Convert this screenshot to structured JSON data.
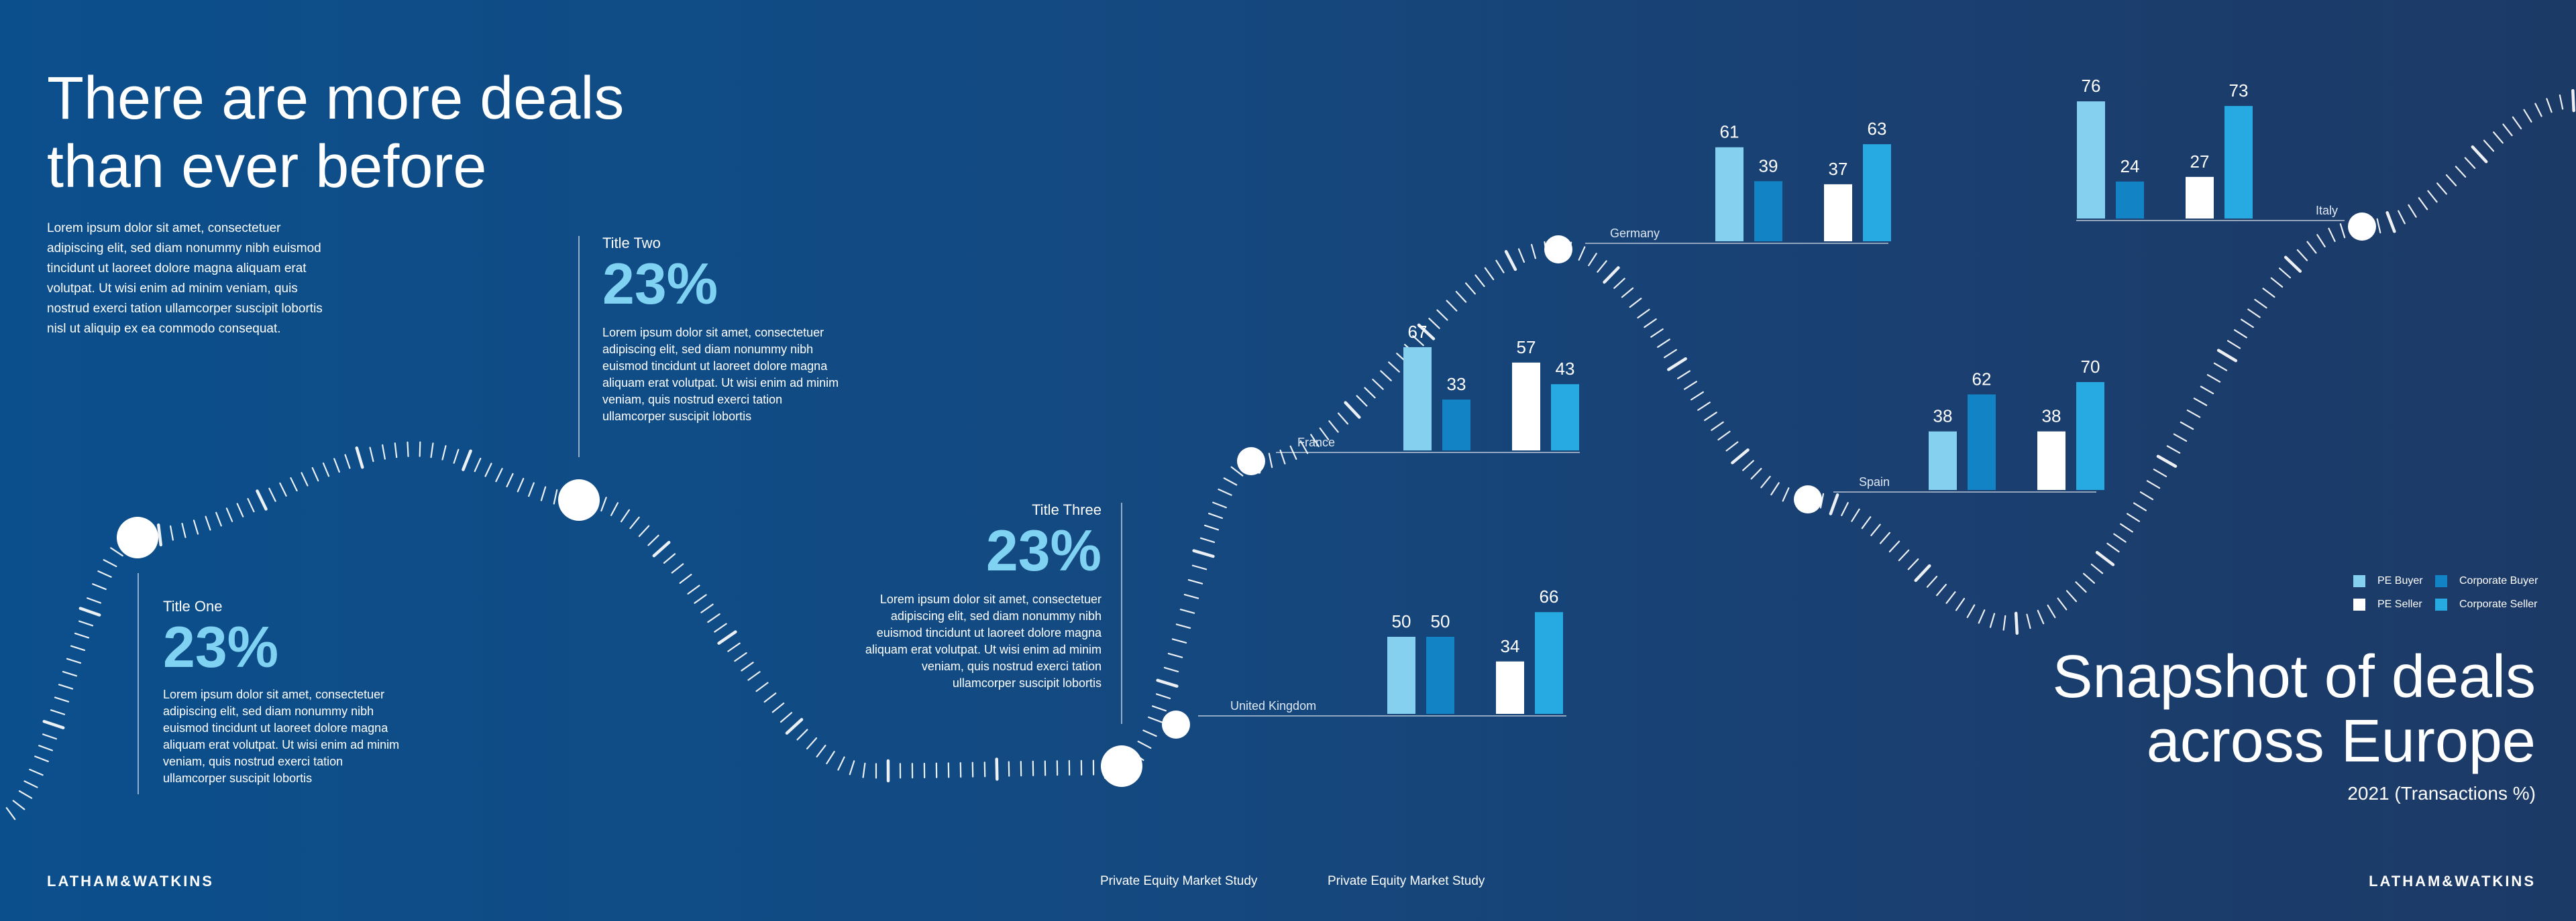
{
  "headline": {
    "line1": "There are more deals",
    "line2": "than ever before"
  },
  "intro_text": "Lorem ipsum dolor sit amet, consectetuer adipiscing elit, sed diam nonummy nibh euismod tincidunt ut laoreet dolore magna aliquam erat volutpat. Ut wisi enim ad minim veniam, quis nostrud exerci tation ullamcorper suscipit lobortis nisl ut aliquip ex ea commodo consequat.",
  "callouts": [
    {
      "title": "Title One",
      "value": "23%",
      "body": "Lorem ipsum dolor sit amet, consectetuer adipiscing elit, sed diam nonummy nibh euismod tincidunt ut laoreet dolore magna aliquam erat volutpat. Ut wisi enim ad minim veniam, quis nostrud exerci tation ullamcorper suscipit lobortis"
    },
    {
      "title": "Title Two",
      "value": "23%",
      "body": "Lorem ipsum dolor sit amet, consectetuer adipiscing elit, sed diam nonummy nibh euismod tincidunt ut laoreet dolore magna aliquam erat volutpat. Ut wisi enim ad minim veniam, quis nostrud exerci tation ullamcorper suscipit lobortis"
    },
    {
      "title": "Title Three",
      "value": "23%",
      "body": "Lorem ipsum dolor sit amet, consectetuer adipiscing elit, sed diam nonummy nibh euismod tincidunt ut laoreet dolore magna aliquam erat volutpat. Ut wisi enim ad minim veniam, quis nostrud exerci tation ullamcorper suscipit lobortis"
    }
  ],
  "snapshot": {
    "line1": "Snapshot of deals",
    "line2": "across Europe",
    "subtitle": "2021 (Transactions %)"
  },
  "footer": {
    "logo": "LATHAM&WATKINS",
    "study1": "Private Equity Market Study",
    "study2": "Private Equity Market Study"
  },
  "legend": [
    {
      "label": "PE Buyer",
      "color": "#84d0ee"
    },
    {
      "label": "Corporate Buyer",
      "color": "#1283c4"
    },
    {
      "label": "PE Seller",
      "color": "#ffffff"
    },
    {
      "label": "Corporate Seller",
      "color": "#27a9e1"
    }
  ],
  "chart_data": {
    "type": "bar",
    "title": "Snapshot of deals across Europe",
    "subtitle": "2021 (Transactions %)",
    "series_order": [
      "PE Buyer",
      "Corporate Buyer",
      "PE Seller",
      "Corporate Seller"
    ],
    "colors": [
      "#84d0ee",
      "#1283c4",
      "#ffffff",
      "#27a9e1"
    ],
    "groups": [
      {
        "country": "United Kingdom",
        "values": [
          50,
          50,
          34,
          66
        ]
      },
      {
        "country": "France",
        "values": [
          67,
          33,
          57,
          43
        ]
      },
      {
        "country": "Germany",
        "values": [
          61,
          39,
          37,
          63
        ]
      },
      {
        "country": "Spain",
        "values": [
          38,
          62,
          38,
          70
        ]
      },
      {
        "country": "Italy",
        "values": [
          76,
          24,
          27,
          73
        ]
      }
    ]
  }
}
